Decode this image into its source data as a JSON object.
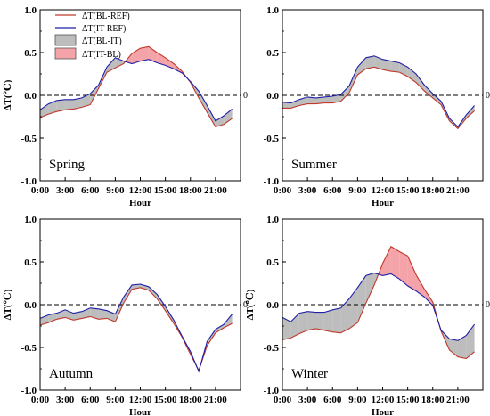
{
  "colors": {
    "bl_ref": "#c0392b",
    "it_ref": "#1f1fa8",
    "fill_bl_it": "#bdbdbd",
    "fill_it_bl": "#f4a3a8",
    "zero_line": "#000000"
  },
  "legend": [
    {
      "label": "ΔT(BL-REF)",
      "kind": "line",
      "color_key": "bl_ref"
    },
    {
      "label": "ΔT(IT-REF)",
      "kind": "line",
      "color_key": "it_ref"
    },
    {
      "label": "ΔT(BL-IT)",
      "kind": "fill",
      "color_key": "fill_bl_it"
    },
    {
      "label": "ΔT(IT-BL)",
      "kind": "fill",
      "color_key": "fill_it_bl"
    }
  ],
  "chart_data": [
    {
      "type": "line",
      "panel": "Spring",
      "x": [
        0,
        1,
        2,
        3,
        4,
        5,
        6,
        7,
        8,
        9,
        10,
        11,
        12,
        13,
        14,
        15,
        16,
        17,
        18,
        19,
        20,
        21,
        22,
        23
      ],
      "xticks": [
        "0:00",
        "3:00",
        "6:00",
        "9:00",
        "12:00",
        "15:00",
        "18:00",
        "21:00"
      ],
      "xlabel": "Hour",
      "ylabel": "ΔT(℃)",
      "ylim": [
        -1.0,
        1.0
      ],
      "yticks": [
        "-1.0",
        "-0.5",
        "0.0",
        "0.5",
        "1.0"
      ],
      "zero_label": "0",
      "legend": "top-left",
      "series": [
        {
          "name": "ΔT(BL-REF)",
          "values": [
            -0.26,
            -0.22,
            -0.19,
            -0.17,
            -0.16,
            -0.14,
            -0.11,
            0.08,
            0.27,
            0.32,
            0.37,
            0.49,
            0.55,
            0.57,
            0.5,
            0.44,
            0.37,
            0.28,
            0.15,
            -0.03,
            -0.2,
            -0.37,
            -0.34,
            -0.27
          ]
        },
        {
          "name": "ΔT(IT-REF)",
          "values": [
            -0.17,
            -0.1,
            -0.06,
            -0.05,
            -0.05,
            -0.03,
            0.02,
            0.12,
            0.33,
            0.44,
            0.4,
            0.37,
            0.4,
            0.42,
            0.38,
            0.35,
            0.31,
            0.26,
            0.16,
            0.05,
            -0.12,
            -0.3,
            -0.24,
            -0.16
          ]
        }
      ]
    },
    {
      "type": "line",
      "panel": "Summer",
      "x": [
        0,
        1,
        2,
        3,
        4,
        5,
        6,
        7,
        8,
        9,
        10,
        11,
        12,
        13,
        14,
        15,
        16,
        17,
        18,
        19,
        20,
        21,
        22,
        23
      ],
      "xticks": [
        "0:00",
        "3:00",
        "6:00",
        "9:00",
        "12:00",
        "15:00",
        "18:00",
        "21:00"
      ],
      "xlabel": "Hour",
      "ylabel": "",
      "ylim": [
        -1.0,
        1.0
      ],
      "yticks": [
        "-1.0",
        "-0.5",
        "0.0",
        "0.5",
        "1.0"
      ],
      "zero_label": "0",
      "series": [
        {
          "name": "ΔT(BL-REF)",
          "values": [
            -0.15,
            -0.15,
            -0.12,
            -0.1,
            -0.1,
            -0.09,
            -0.09,
            -0.07,
            0.03,
            0.24,
            0.31,
            0.33,
            0.3,
            0.28,
            0.27,
            0.22,
            0.15,
            0.05,
            -0.03,
            -0.11,
            -0.3,
            -0.39,
            -0.27,
            -0.18
          ]
        },
        {
          "name": "ΔT(IT-REF)",
          "values": [
            -0.08,
            -0.09,
            -0.05,
            -0.02,
            -0.03,
            -0.02,
            -0.01,
            0.01,
            0.11,
            0.33,
            0.44,
            0.46,
            0.42,
            0.4,
            0.38,
            0.33,
            0.25,
            0.12,
            0.02,
            -0.07,
            -0.27,
            -0.37,
            -0.23,
            -0.12
          ]
        }
      ]
    },
    {
      "type": "line",
      "panel": "Autumn",
      "x": [
        0,
        1,
        2,
        3,
        4,
        5,
        6,
        7,
        8,
        9,
        10,
        11,
        12,
        13,
        14,
        15,
        16,
        17,
        18,
        19,
        20,
        21,
        22,
        23
      ],
      "xticks": [
        "0:00",
        "3:00",
        "6:00",
        "9:00",
        "12:00",
        "15:00",
        "18:00",
        "21:00"
      ],
      "xlabel": "Hour",
      "ylabel": "ΔT(℃)",
      "ylim": [
        -1.0,
        1.0
      ],
      "yticks": [
        "-1.0",
        "-0.5",
        "0.0",
        "0.5",
        "1.0"
      ],
      "zero_label": "0",
      "series": [
        {
          "name": "ΔT(BL-REF)",
          "values": [
            -0.24,
            -0.21,
            -0.17,
            -0.15,
            -0.18,
            -0.16,
            -0.14,
            -0.17,
            -0.16,
            -0.2,
            0.02,
            0.18,
            0.2,
            0.17,
            0.07,
            -0.07,
            -0.22,
            -0.38,
            -0.58,
            -0.77,
            -0.48,
            -0.33,
            -0.27,
            -0.22
          ]
        },
        {
          "name": "ΔT(IT-REF)",
          "values": [
            -0.16,
            -0.12,
            -0.1,
            -0.06,
            -0.1,
            -0.08,
            -0.04,
            -0.05,
            -0.07,
            -0.11,
            0.09,
            0.23,
            0.24,
            0.21,
            0.12,
            -0.02,
            -0.18,
            -0.37,
            -0.55,
            -0.78,
            -0.43,
            -0.29,
            -0.23,
            -0.11
          ]
        }
      ]
    },
    {
      "type": "line",
      "panel": "Winter",
      "x": [
        0,
        1,
        2,
        3,
        4,
        5,
        6,
        7,
        8,
        9,
        10,
        11,
        12,
        13,
        14,
        15,
        16,
        17,
        18,
        19,
        20,
        21,
        22,
        23
      ],
      "xticks": [
        "0:00",
        "3:00",
        "6:00",
        "9:00",
        "12:00",
        "15:00",
        "18:00",
        "21:00"
      ],
      "xlabel": "Hour",
      "ylabel": "ΔT(℃)",
      "ylim": [
        -1.0,
        1.0
      ],
      "yticks": [
        "-1.0",
        "-0.5",
        "0.0",
        "0.5",
        "1.0"
      ],
      "zero_label": "0",
      "series": [
        {
          "name": "ΔT(BL-REF)",
          "values": [
            -0.41,
            -0.39,
            -0.34,
            -0.3,
            -0.28,
            -0.3,
            -0.32,
            -0.33,
            -0.28,
            -0.21,
            0.02,
            0.23,
            0.48,
            0.68,
            0.62,
            0.57,
            0.35,
            0.18,
            0.03,
            -0.31,
            -0.53,
            -0.61,
            -0.63,
            -0.55
          ]
        },
        {
          "name": "ΔT(IT-REF)",
          "values": [
            -0.15,
            -0.2,
            -0.1,
            -0.08,
            -0.09,
            -0.09,
            -0.06,
            -0.04,
            0.07,
            0.2,
            0.34,
            0.37,
            0.34,
            0.36,
            0.3,
            0.22,
            0.16,
            0.09,
            -0.01,
            -0.3,
            -0.4,
            -0.42,
            -0.36,
            -0.23
          ]
        }
      ]
    }
  ]
}
